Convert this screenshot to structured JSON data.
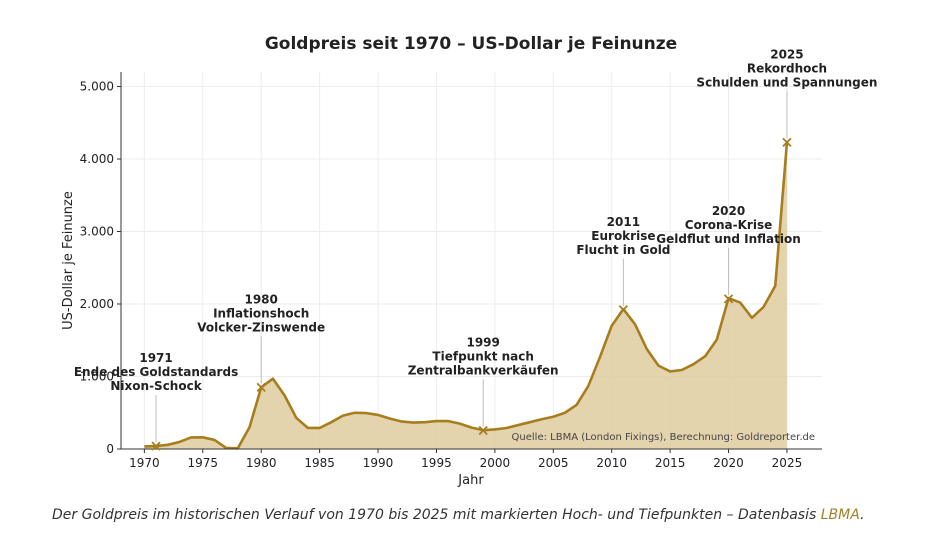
{
  "chart_data": {
    "type": "area",
    "title": "Goldpreis seit 1970 – US-Dollar je Feinunze",
    "xlabel": "Jahr",
    "ylabel": "US-Dollar je Feinunze",
    "xlim": [
      1968,
      2028
    ],
    "ylim": [
      0,
      5200
    ],
    "xticks": [
      1970,
      1975,
      1980,
      1985,
      1990,
      1995,
      2000,
      2005,
      2010,
      2015,
      2020,
      2025
    ],
    "xtick_labels": [
      "1970",
      "1975",
      "1980",
      "1985",
      "1990",
      "1995",
      "2000",
      "2005",
      "2010",
      "2015",
      "2020",
      "2025"
    ],
    "yticks": [
      0,
      1000,
      2000,
      3000,
      4000,
      5000
    ],
    "ytick_labels": [
      "0",
      "1.000",
      "2.000",
      "3.000",
      "4.000",
      "5.000"
    ],
    "grid": true,
    "series": [
      {
        "name": "Goldpreis",
        "color": "#a87d1e",
        "fill": "#dfcda0",
        "x": [
          1970,
          1971,
          1972,
          1973,
          1974,
          1975,
          1976,
          1977,
          1978,
          1979,
          1980,
          1981,
          1982,
          1983,
          1984,
          1985,
          1986,
          1987,
          1988,
          1989,
          1990,
          1991,
          1992,
          1993,
          1994,
          1995,
          1996,
          1997,
          1998,
          1999,
          2000,
          2001,
          2002,
          2003,
          2004,
          2005,
          2006,
          2007,
          2008,
          2009,
          2010,
          2011,
          2012,
          2013,
          2014,
          2015,
          2016,
          2017,
          2018,
          2019,
          2020,
          2021,
          2022,
          2023,
          2024,
          2025
        ],
        "values": [
          36,
          41,
          58,
          97,
          159,
          161,
          125,
          15,
          10,
          300,
          850,
          970,
          740,
          430,
          290,
          290,
          370,
          460,
          500,
          495,
          470,
          420,
          380,
          365,
          370,
          385,
          385,
          350,
          295,
          260,
          270,
          290,
          330,
          370,
          410,
          445,
          500,
          610,
          870,
          1270,
          1700,
          1930,
          1720,
          1380,
          1150,
          1070,
          1090,
          1170,
          1280,
          1510,
          2080,
          2020,
          1810,
          1960,
          2250,
          4230
        ]
      }
    ],
    "markers": [
      {
        "x": 1971,
        "y": 40
      },
      {
        "x": 1980,
        "y": 850
      },
      {
        "x": 1999,
        "y": 255
      },
      {
        "x": 2011,
        "y": 1920
      },
      {
        "x": 2020,
        "y": 2070
      },
      {
        "x": 2025,
        "y": 4230
      }
    ],
    "annotations": [
      {
        "x": 1971,
        "y": 40,
        "lines": [
          "1971",
          "Ende des Goldstandards",
          "Nixon-Schock"
        ]
      },
      {
        "x": 1980,
        "y": 850,
        "lines": [
          "1980",
          "Inflationshoch",
          "Volcker-Zinswende"
        ]
      },
      {
        "x": 1999,
        "y": 255,
        "lines": [
          "1999",
          "Tiefpunkt nach",
          "Zentralbankverkäufen"
        ]
      },
      {
        "x": 2011,
        "y": 1920,
        "lines": [
          "2011",
          "Eurokrise",
          "Flucht in Gold"
        ]
      },
      {
        "x": 2020,
        "y": 2070,
        "lines": [
          "2020",
          "Corona-Krise",
          "Geldflut und Inflation"
        ]
      },
      {
        "x": 2025,
        "y": 4230,
        "lines": [
          "2025",
          "Rekordhoch",
          "Schulden und Spannungen"
        ]
      }
    ],
    "source_note": "Quelle: LBMA (London Fixings), Berechnung: Goldreporter.de"
  },
  "caption": {
    "text": "Der Goldpreis im historischen Verlauf von 1970 bis 2025 mit markierten Hoch- und Tiefpunkten – Datenbasis",
    "link": "LBMA",
    "end": "."
  }
}
